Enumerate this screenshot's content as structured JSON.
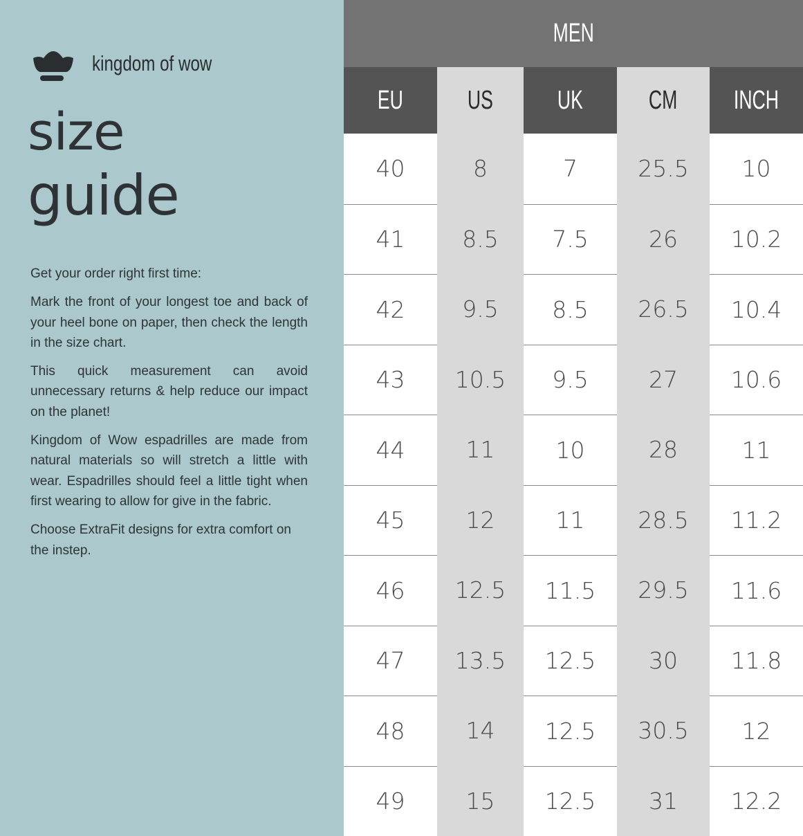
{
  "brand": {
    "name": "kingdom of wow",
    "logo_icon": "crown-icon"
  },
  "title": {
    "line1": "size",
    "line2": "guide"
  },
  "copy": [
    "Get your order right first time:",
    "Mark the front of your longest toe and back of your heel bone on paper, then check the length in the size chart.",
    "This quick measurement can avoid unnecessary returns & help reduce our impact on the planet!",
    "Kingdom of Wow espadrilles are made from natural materials so will stretch a little with wear. Espadrilles should feel a little tight when first wearing to allow for give in the fabric.",
    "Choose ExtraFit designs for extra comfort on the instep."
  ],
  "table": {
    "title": "MEN",
    "headers": [
      "EU",
      "US",
      "UK",
      "CM",
      "INCH"
    ],
    "columns": [
      [
        "40",
        "41",
        "42",
        "43",
        "44",
        "45",
        "46",
        "47",
        "48",
        "49"
      ],
      [
        "8",
        "8.5",
        "9.5",
        "10.5",
        "11",
        "12",
        "12.5",
        "13.5",
        "14",
        "15"
      ],
      [
        "7",
        "7.5",
        "8.5",
        "9.5",
        "10",
        "11",
        "11.5",
        "12.5",
        "12.5",
        "12.5"
      ],
      [
        "25.5",
        "26",
        "26.5",
        "27",
        "28",
        "28.5",
        "29.5",
        "30",
        "30.5",
        "31"
      ],
      [
        "10",
        "10.2",
        "10.4",
        "10.6",
        "11",
        "11.2",
        "11.6",
        "11.8",
        "12",
        "12.2"
      ]
    ]
  },
  "colors": {
    "panel": "#abc8cd",
    "header_dark": "#545454",
    "header_title": "#737373",
    "alt_column": "#d9d9d9"
  }
}
